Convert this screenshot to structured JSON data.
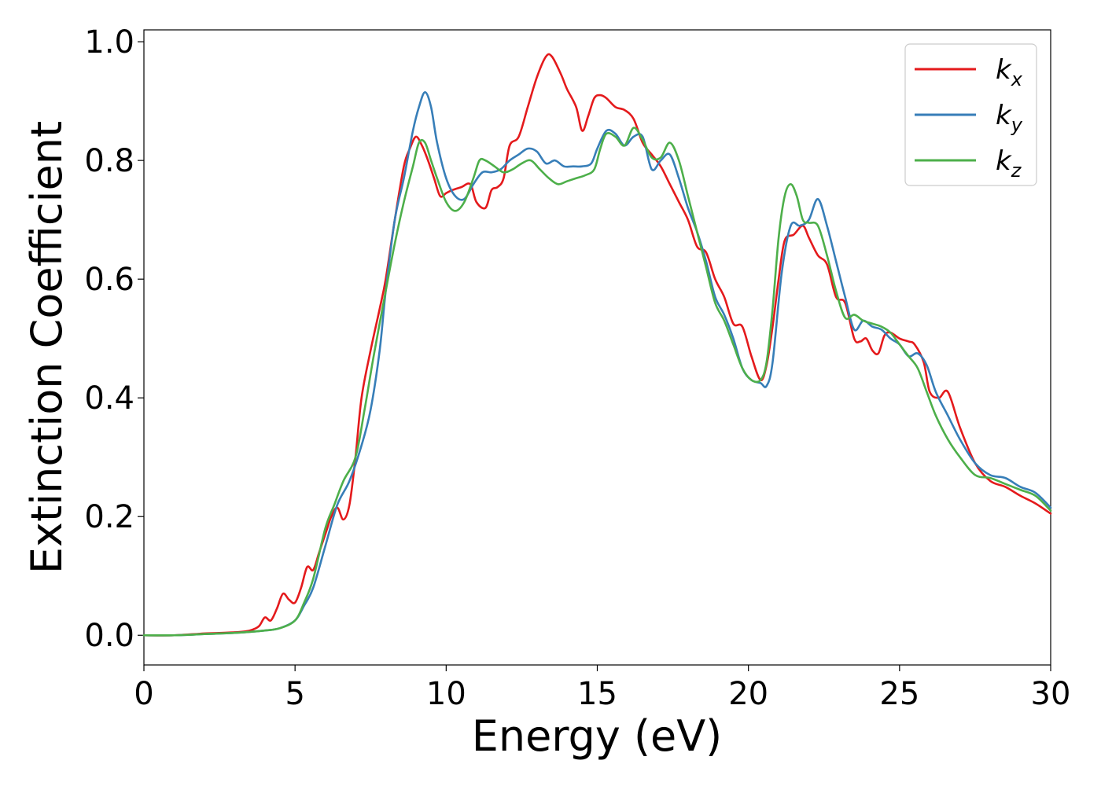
{
  "chart_data": {
    "type": "line",
    "title": "",
    "xlabel": "Energy (eV)",
    "ylabel": "Extinction Coefficient",
    "xlim": [
      0,
      30
    ],
    "ylim": [
      -0.05,
      1.02
    ],
    "xticks": [
      0,
      5,
      10,
      15,
      20,
      25,
      30
    ],
    "yticks": [
      0.0,
      0.2,
      0.4,
      0.6,
      0.8,
      1.0
    ],
    "xtick_labels": [
      "0",
      "5",
      "10",
      "15",
      "20",
      "25",
      "30"
    ],
    "ytick_labels": [
      "0.0",
      "0.2",
      "0.4",
      "0.6",
      "0.8",
      "1.0"
    ],
    "grid": false,
    "legend_position": "top-right",
    "series": [
      {
        "name": "k",
        "subscript": "x",
        "color": "#e41a1c",
        "x": [
          0,
          1,
          2,
          3,
          3.5,
          3.8,
          4.0,
          4.2,
          4.4,
          4.6,
          4.8,
          5.0,
          5.2,
          5.4,
          5.6,
          5.8,
          6.0,
          6.2,
          6.4,
          6.6,
          6.8,
          7.0,
          7.2,
          7.5,
          7.8,
          8.0,
          8.3,
          8.6,
          8.8,
          9.0,
          9.2,
          9.4,
          9.6,
          9.8,
          10.0,
          10.2,
          10.5,
          10.8,
          11.0,
          11.3,
          11.5,
          11.7,
          11.9,
          12.1,
          12.4,
          12.7,
          13.0,
          13.3,
          13.5,
          13.8,
          14.0,
          14.3,
          14.5,
          14.7,
          14.9,
          15.1,
          15.3,
          15.6,
          15.9,
          16.2,
          16.5,
          16.8,
          17.1,
          17.4,
          17.7,
          18.0,
          18.3,
          18.6,
          18.9,
          19.2,
          19.5,
          19.8,
          20.1,
          20.4,
          20.6,
          20.8,
          21.0,
          21.2,
          21.5,
          21.8,
          22.0,
          22.3,
          22.6,
          22.9,
          23.2,
          23.5,
          23.7,
          23.9,
          24.1,
          24.3,
          24.5,
          24.7,
          25.0,
          25.3,
          25.5,
          25.8,
          26.0,
          26.3,
          26.6,
          27.0,
          27.5,
          28.0,
          28.5,
          29.0,
          29.5,
          30.0
        ],
        "y": [
          0.0,
          0.0,
          0.003,
          0.005,
          0.008,
          0.015,
          0.03,
          0.025,
          0.045,
          0.07,
          0.06,
          0.055,
          0.08,
          0.115,
          0.11,
          0.14,
          0.17,
          0.2,
          0.215,
          0.195,
          0.22,
          0.3,
          0.4,
          0.48,
          0.55,
          0.6,
          0.7,
          0.79,
          0.82,
          0.84,
          0.825,
          0.8,
          0.77,
          0.74,
          0.745,
          0.75,
          0.755,
          0.76,
          0.73,
          0.72,
          0.75,
          0.755,
          0.77,
          0.825,
          0.84,
          0.89,
          0.94,
          0.975,
          0.975,
          0.945,
          0.92,
          0.89,
          0.85,
          0.875,
          0.905,
          0.91,
          0.905,
          0.89,
          0.885,
          0.87,
          0.83,
          0.81,
          0.79,
          0.76,
          0.73,
          0.7,
          0.655,
          0.645,
          0.6,
          0.57,
          0.525,
          0.52,
          0.47,
          0.43,
          0.455,
          0.52,
          0.6,
          0.665,
          0.675,
          0.69,
          0.67,
          0.64,
          0.625,
          0.57,
          0.56,
          0.5,
          0.495,
          0.5,
          0.48,
          0.475,
          0.505,
          0.51,
          0.5,
          0.495,
          0.49,
          0.46,
          0.41,
          0.4,
          0.41,
          0.35,
          0.29,
          0.26,
          0.25,
          0.235,
          0.222,
          0.205
        ]
      },
      {
        "name": "k",
        "subscript": "y",
        "color": "#377eb8",
        "x": [
          0,
          1,
          2,
          3,
          4,
          4.5,
          5.0,
          5.3,
          5.6,
          6.0,
          6.4,
          6.8,
          7.2,
          7.5,
          7.8,
          8.0,
          8.3,
          8.6,
          8.9,
          9.1,
          9.3,
          9.5,
          9.7,
          10.0,
          10.3,
          10.6,
          10.9,
          11.2,
          11.5,
          11.8,
          12.1,
          12.4,
          12.7,
          13.0,
          13.3,
          13.6,
          13.9,
          14.2,
          14.5,
          14.8,
          15.0,
          15.3,
          15.6,
          15.9,
          16.2,
          16.5,
          16.8,
          17.1,
          17.4,
          17.7,
          18.0,
          18.3,
          18.6,
          18.9,
          19.2,
          19.5,
          19.8,
          20.1,
          20.4,
          20.6,
          20.8,
          21.1,
          21.4,
          21.7,
          22.0,
          22.3,
          22.6,
          22.9,
          23.2,
          23.5,
          23.8,
          24.1,
          24.4,
          24.7,
          25.0,
          25.3,
          25.6,
          25.9,
          26.2,
          26.6,
          27.0,
          27.5,
          28.0,
          28.5,
          29.0,
          29.5,
          30.0
        ],
        "y": [
          0.0,
          0.0,
          0.002,
          0.004,
          0.008,
          0.012,
          0.025,
          0.05,
          0.08,
          0.15,
          0.22,
          0.26,
          0.32,
          0.38,
          0.48,
          0.58,
          0.7,
          0.77,
          0.85,
          0.89,
          0.915,
          0.89,
          0.83,
          0.77,
          0.74,
          0.735,
          0.76,
          0.78,
          0.78,
          0.785,
          0.8,
          0.81,
          0.82,
          0.815,
          0.795,
          0.8,
          0.79,
          0.79,
          0.79,
          0.795,
          0.82,
          0.85,
          0.845,
          0.825,
          0.84,
          0.84,
          0.785,
          0.8,
          0.81,
          0.77,
          0.72,
          0.68,
          0.63,
          0.57,
          0.54,
          0.5,
          0.45,
          0.43,
          0.425,
          0.42,
          0.46,
          0.61,
          0.69,
          0.69,
          0.7,
          0.735,
          0.69,
          0.63,
          0.57,
          0.515,
          0.53,
          0.52,
          0.515,
          0.5,
          0.49,
          0.47,
          0.475,
          0.455,
          0.41,
          0.37,
          0.33,
          0.29,
          0.27,
          0.265,
          0.25,
          0.24,
          0.215
        ]
      },
      {
        "name": "k",
        "subscript": "z",
        "color": "#4daf4a",
        "x": [
          0,
          1,
          2,
          3,
          4,
          4.5,
          5.0,
          5.3,
          5.6,
          6.0,
          6.3,
          6.6,
          7.0,
          7.3,
          7.6,
          8.0,
          8.3,
          8.6,
          8.9,
          9.1,
          9.3,
          9.5,
          9.7,
          10.0,
          10.3,
          10.6,
          10.9,
          11.1,
          11.3,
          11.6,
          11.9,
          12.2,
          12.5,
          12.8,
          13.1,
          13.4,
          13.7,
          14.0,
          14.3,
          14.6,
          14.9,
          15.1,
          15.3,
          15.6,
          15.9,
          16.2,
          16.5,
          16.8,
          17.1,
          17.4,
          17.7,
          18.0,
          18.3,
          18.6,
          18.9,
          19.2,
          19.5,
          19.8,
          20.1,
          20.4,
          20.6,
          20.8,
          21.0,
          21.2,
          21.4,
          21.6,
          21.8,
          22.0,
          22.3,
          22.6,
          22.9,
          23.2,
          23.5,
          23.8,
          24.1,
          24.4,
          24.7,
          25.0,
          25.3,
          25.6,
          25.9,
          26.2,
          26.6,
          27.0,
          27.5,
          28.0,
          28.5,
          29.0,
          29.5,
          30.0
        ],
        "y": [
          0.0,
          0.0,
          0.002,
          0.004,
          0.008,
          0.012,
          0.025,
          0.055,
          0.095,
          0.18,
          0.22,
          0.26,
          0.3,
          0.38,
          0.47,
          0.58,
          0.66,
          0.73,
          0.79,
          0.83,
          0.83,
          0.8,
          0.77,
          0.73,
          0.715,
          0.73,
          0.77,
          0.8,
          0.8,
          0.79,
          0.78,
          0.785,
          0.795,
          0.8,
          0.785,
          0.77,
          0.76,
          0.765,
          0.77,
          0.775,
          0.785,
          0.82,
          0.845,
          0.84,
          0.825,
          0.855,
          0.835,
          0.805,
          0.805,
          0.83,
          0.8,
          0.74,
          0.68,
          0.62,
          0.56,
          0.53,
          0.49,
          0.45,
          0.43,
          0.43,
          0.46,
          0.55,
          0.67,
          0.74,
          0.76,
          0.74,
          0.7,
          0.695,
          0.69,
          0.64,
          0.58,
          0.535,
          0.54,
          0.53,
          0.525,
          0.52,
          0.51,
          0.49,
          0.47,
          0.45,
          0.41,
          0.37,
          0.33,
          0.3,
          0.27,
          0.265,
          0.255,
          0.245,
          0.235,
          0.21
        ]
      }
    ]
  }
}
